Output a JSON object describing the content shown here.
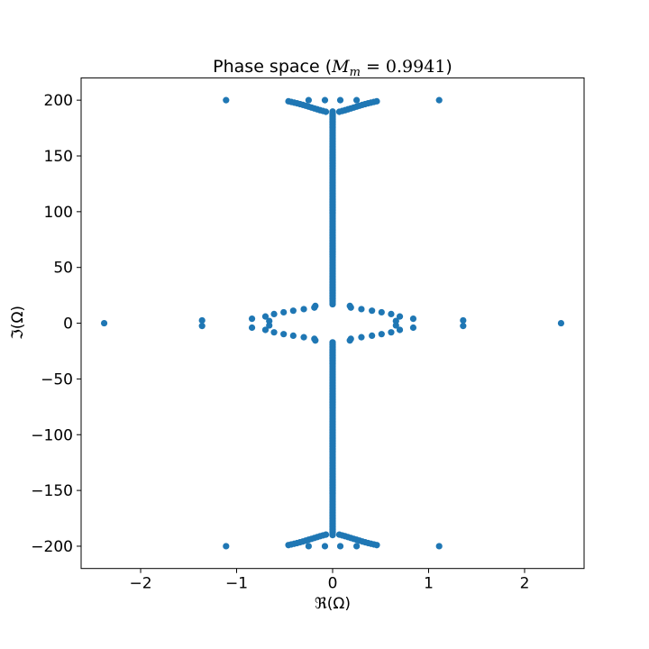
{
  "chart_data": {
    "type": "scatter",
    "title": {
      "prefix": "Phase space (",
      "var": "M",
      "sub": "m",
      "eq": " = ",
      "value": "0.9941",
      "suffix": ")"
    },
    "xlabel": "ℜ(Ω)",
    "ylabel": "ℑ(Ω)",
    "xlim": [
      -2.62,
      2.62
    ],
    "ylim": [
      -220,
      220
    ],
    "xticks": [
      -2,
      -1,
      0,
      1,
      2
    ],
    "xtick_labels": [
      "−2",
      "−1",
      "0",
      "1",
      "2"
    ],
    "yticks": [
      -200,
      -150,
      -100,
      -50,
      0,
      50,
      100,
      150,
      200
    ],
    "ytick_labels": [
      "−200",
      "−150",
      "−100",
      "−50",
      "0",
      "50",
      "100",
      "150",
      "200"
    ],
    "grid": false,
    "marker_color": "#1f77b4",
    "series": [
      {
        "points": [
          [
            -2.38,
            0
          ],
          [
            2.38,
            0
          ],
          [
            -1.36,
            2.5
          ],
          [
            -1.36,
            -2.5
          ],
          [
            1.36,
            2.5
          ],
          [
            1.36,
            -2.5
          ],
          [
            -1.11,
            200
          ],
          [
            1.11,
            200
          ],
          [
            -1.11,
            -200
          ],
          [
            1.11,
            -200
          ],
          [
            -0.25,
            200
          ],
          [
            -0.08,
            200
          ],
          [
            0.08,
            200
          ],
          [
            0.25,
            200
          ],
          [
            -0.25,
            -200
          ],
          [
            -0.08,
            -200
          ],
          [
            0.08,
            -200
          ],
          [
            0.25,
            -200
          ],
          [
            -0.84,
            4
          ],
          [
            -0.84,
            -4
          ],
          [
            0.84,
            4
          ],
          [
            0.84,
            -4
          ],
          [
            -0.7,
            6
          ],
          [
            -0.66,
            2
          ],
          [
            -0.66,
            -2
          ],
          [
            -0.7,
            -6
          ],
          [
            -0.61,
            8.2
          ],
          [
            -0.61,
            -8.2
          ],
          [
            -0.51,
            9.8
          ],
          [
            -0.51,
            -9.8
          ],
          [
            -0.41,
            11.2
          ],
          [
            -0.41,
            -11.2
          ],
          [
            -0.3,
            12.6
          ],
          [
            -0.3,
            -12.6
          ],
          [
            -0.19,
            14
          ],
          [
            -0.19,
            -14
          ],
          [
            -0.18,
            15.5
          ],
          [
            -0.18,
            -15.5
          ],
          [
            0.7,
            6
          ],
          [
            0.66,
            2
          ],
          [
            0.66,
            -2
          ],
          [
            0.7,
            -6
          ],
          [
            0.61,
            8.2
          ],
          [
            0.61,
            -8.2
          ],
          [
            0.51,
            9.8
          ],
          [
            0.51,
            -9.8
          ],
          [
            0.41,
            11.2
          ],
          [
            0.41,
            -11.2
          ],
          [
            0.3,
            12.6
          ],
          [
            0.3,
            -12.6
          ],
          [
            0.19,
            14
          ],
          [
            0.19,
            -14
          ],
          [
            0.18,
            15.5
          ],
          [
            0.18,
            -15.5
          ],
          [
            -0.46,
            199
          ],
          [
            -0.43,
            198.4
          ],
          [
            -0.4,
            197.8
          ],
          [
            -0.37,
            197.2
          ],
          [
            -0.34,
            196.5
          ],
          [
            -0.31,
            195.8
          ],
          [
            -0.28,
            195
          ],
          [
            -0.25,
            194.2
          ],
          [
            -0.22,
            193.4
          ],
          [
            -0.19,
            192.6
          ],
          [
            -0.16,
            191.8
          ],
          [
            -0.13,
            191
          ],
          [
            -0.1,
            190.3
          ],
          [
            -0.07,
            189.6
          ],
          [
            0.46,
            199
          ],
          [
            0.43,
            198.4
          ],
          [
            0.4,
            197.8
          ],
          [
            0.37,
            197.2
          ],
          [
            0.34,
            196.5
          ],
          [
            0.31,
            195.8
          ],
          [
            0.28,
            195
          ],
          [
            0.25,
            194.2
          ],
          [
            0.22,
            193.4
          ],
          [
            0.19,
            192.6
          ],
          [
            0.16,
            191.8
          ],
          [
            0.13,
            191
          ],
          [
            0.1,
            190.3
          ],
          [
            0.07,
            189.6
          ],
          [
            -0.46,
            -199
          ],
          [
            -0.43,
            -198.4
          ],
          [
            -0.4,
            -197.8
          ],
          [
            -0.37,
            -197.2
          ],
          [
            -0.34,
            -196.5
          ],
          [
            -0.31,
            -195.8
          ],
          [
            -0.28,
            -195
          ],
          [
            -0.25,
            -194.2
          ],
          [
            -0.22,
            -193.4
          ],
          [
            -0.19,
            -192.6
          ],
          [
            -0.16,
            -191.8
          ],
          [
            -0.13,
            -191
          ],
          [
            -0.1,
            -190.3
          ],
          [
            -0.07,
            -189.6
          ],
          [
            0.46,
            -199
          ],
          [
            0.43,
            -198.4
          ],
          [
            0.4,
            -197.8
          ],
          [
            0.37,
            -197.2
          ],
          [
            0.34,
            -196.5
          ],
          [
            0.31,
            -195.8
          ],
          [
            0.28,
            -195
          ],
          [
            0.25,
            -194.2
          ],
          [
            0.22,
            -193.4
          ],
          [
            0.19,
            -192.6
          ],
          [
            0.16,
            -191.8
          ],
          [
            0.13,
            -191
          ],
          [
            0.1,
            -190.3
          ],
          [
            0.07,
            -189.6
          ]
        ],
        "vertical_band": {
          "x": 0,
          "y_ranges": [
            [
              17,
              190
            ],
            [
              -190,
              -17
            ]
          ],
          "step": 1.2
        }
      }
    ]
  }
}
